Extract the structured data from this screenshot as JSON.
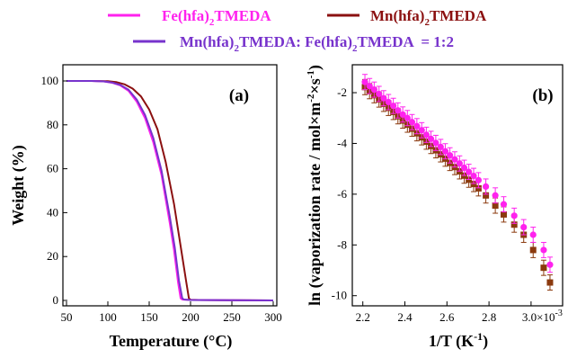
{
  "colors": {
    "fe": "#ff22ee",
    "mn": "#8b1010",
    "mix": "#7733cc",
    "mn_points": "#8b3a0e"
  },
  "legend": {
    "fe": {
      "a": "Fe(hfa)",
      "sub": "2",
      "b": "TMEDA"
    },
    "mn": {
      "a": "Mn(hfa)",
      "sub": "2",
      "b": "TMEDA"
    },
    "mix": {
      "a": "Mn(hfa)",
      "sub1": "2",
      "b": "TMEDA: Fe(hfa)",
      "sub2": "2",
      "c": "TMEDA  = 1:2"
    }
  },
  "chart_data": [
    {
      "type": "line",
      "panel_label": "(a)",
      "xlabel": "Temperature (°C)",
      "ylabel": "Weight (%)",
      "xlim": [
        50,
        300
      ],
      "ylim": [
        0,
        100
      ],
      "xticks": [
        50,
        100,
        150,
        200,
        250,
        300
      ],
      "yticks": [
        0,
        20,
        40,
        60,
        80,
        100
      ],
      "series": [
        {
          "name": "Mn(hfa)2TMEDA",
          "color": "#8b1010",
          "x": [
            50,
            80,
            100,
            110,
            120,
            130,
            140,
            150,
            160,
            170,
            180,
            190,
            195,
            198,
            200,
            210,
            250,
            300
          ],
          "y": [
            100,
            100,
            99.9,
            99.5,
            98.5,
            96.5,
            93,
            87,
            78,
            63,
            44,
            20,
            8,
            1,
            0.3,
            0.2,
            0.1,
            0
          ]
        },
        {
          "name": "Fe(hfa)2TMEDA",
          "color": "#ff22ee",
          "x": [
            50,
            80,
            95,
            105,
            115,
            125,
            135,
            145,
            155,
            165,
            175,
            180,
            185,
            188,
            190,
            200,
            250,
            300
          ],
          "y": [
            100,
            100,
            99.8,
            99.2,
            98,
            95.5,
            90.5,
            83,
            72,
            57,
            35,
            23,
            8,
            1,
            0.4,
            0.2,
            0.1,
            0
          ]
        },
        {
          "name": "Mn(hfa)2TMEDA: Fe(hfa)2TMEDA = 1:2",
          "color": "#7733cc",
          "x": [
            50,
            80,
            95,
            105,
            115,
            125,
            135,
            145,
            155,
            165,
            175,
            181,
            186,
            190,
            192,
            200,
            250,
            300
          ],
          "y": [
            100,
            100,
            99.8,
            99.3,
            98.2,
            96,
            91.5,
            84.5,
            74,
            59,
            38,
            24,
            9,
            1,
            0.4,
            0.2,
            0.1,
            0
          ]
        }
      ]
    },
    {
      "type": "scatter",
      "panel_label": "(b)",
      "xlabel": "1/T (K-1)",
      "ylabel": "ln (vaporization rate / mol×m-2×s-1)",
      "xlim": [
        2.15,
        3.15
      ],
      "ylim": [
        -10.4,
        -0.9
      ],
      "xticks": [
        2.2,
        2.4,
        2.6,
        2.8,
        3.0
      ],
      "xtick_labels": [
        "2.2",
        "2.4",
        "2.6",
        "2.8",
        "3.0×10"
      ],
      "x_exponent": "-3",
      "yticks": [
        -10,
        -8,
        -6,
        -4,
        -2
      ],
      "error_bar": 0.3,
      "series": [
        {
          "name": "Fe(hfa)2TMEDA",
          "color": "#ff22ee",
          "marker": "circle",
          "x": [
            2.21,
            2.232,
            2.254,
            2.277,
            2.299,
            2.322,
            2.345,
            2.367,
            2.39,
            2.412,
            2.434,
            2.457,
            2.48,
            2.502,
            2.524,
            2.547,
            2.57,
            2.592,
            2.614,
            2.637,
            2.66,
            2.682,
            2.704,
            2.727,
            2.75,
            2.785,
            2.83,
            2.87,
            2.92,
            2.965,
            3.01,
            3.06,
            3.09
          ],
          "y": [
            -1.58,
            -1.74,
            -1.88,
            -2.05,
            -2.22,
            -2.37,
            -2.52,
            -2.7,
            -2.86,
            -3.0,
            -3.16,
            -3.32,
            -3.48,
            -3.66,
            -3.82,
            -3.98,
            -4.14,
            -4.31,
            -4.47,
            -4.63,
            -4.79,
            -4.96,
            -5.12,
            -5.28,
            -5.45,
            -5.7,
            -6.05,
            -6.4,
            -6.85,
            -7.3,
            -7.6,
            -8.2,
            -8.78
          ]
        },
        {
          "name": "Mn(hfa)2TMEDA",
          "color": "#8b3a0e",
          "marker": "square",
          "x": [
            2.21,
            2.232,
            2.254,
            2.277,
            2.299,
            2.322,
            2.345,
            2.367,
            2.39,
            2.412,
            2.434,
            2.457,
            2.48,
            2.502,
            2.524,
            2.547,
            2.57,
            2.592,
            2.614,
            2.637,
            2.66,
            2.682,
            2.704,
            2.727,
            2.75,
            2.785,
            2.83,
            2.87,
            2.92,
            2.965,
            3.01,
            3.06,
            3.09
          ],
          "y": [
            -1.78,
            -1.94,
            -2.1,
            -2.27,
            -2.44,
            -2.6,
            -2.76,
            -2.93,
            -3.1,
            -3.26,
            -3.42,
            -3.6,
            -3.76,
            -3.93,
            -4.1,
            -4.27,
            -4.43,
            -4.6,
            -4.77,
            -4.93,
            -5.1,
            -5.27,
            -5.43,
            -5.6,
            -5.77,
            -6.05,
            -6.45,
            -6.8,
            -7.2,
            -7.6,
            -8.2,
            -8.9,
            -9.48
          ]
        }
      ]
    }
  ]
}
